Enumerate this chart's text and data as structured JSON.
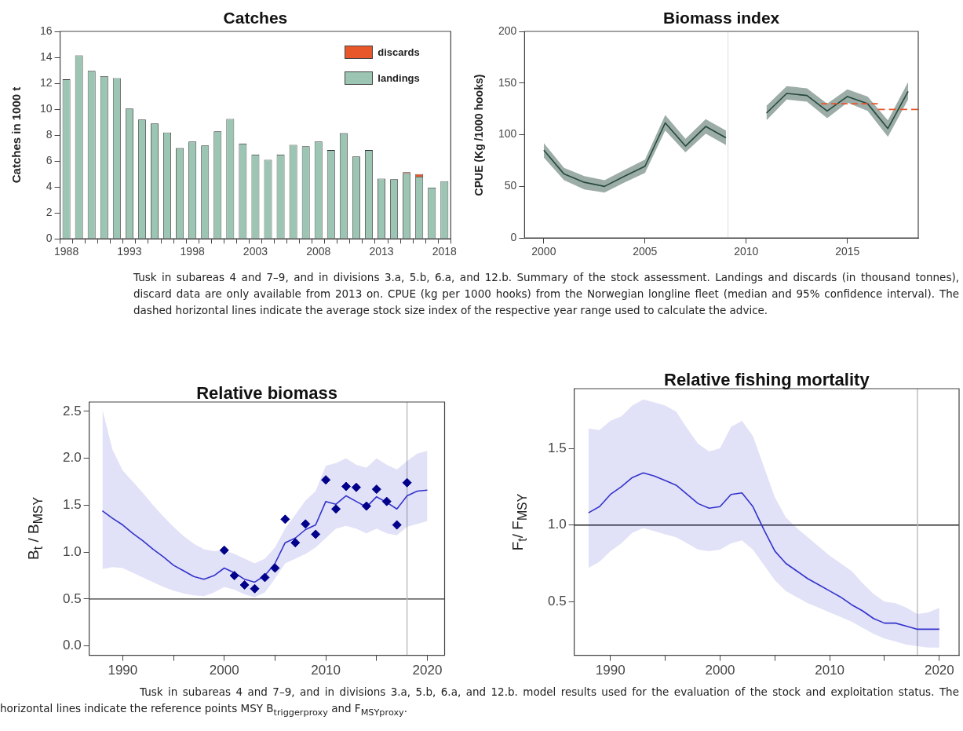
{
  "chart_data": [
    {
      "type": "bar",
      "title": "Catches",
      "ylabel": "Catches in 1000 t",
      "stacked": true,
      "legend": "top right",
      "grid": false,
      "categories": [
        "1988",
        null,
        null,
        null,
        null,
        "1993",
        null,
        null,
        null,
        null,
        "1998",
        null,
        null,
        null,
        null,
        "2003",
        null,
        null,
        null,
        null,
        "2008",
        null,
        null,
        null,
        null,
        "2013",
        null,
        null,
        null,
        null,
        "2018"
      ],
      "ylim": [
        0,
        16
      ],
      "yticks": [
        0,
        2,
        4,
        6,
        8,
        10,
        12,
        14,
        16
      ],
      "series": [
        {
          "name": "landings",
          "color": "#9cc5b3",
          "values": [
            12.3,
            14.15,
            12.95,
            12.55,
            12.4,
            10.05,
            9.2,
            8.9,
            8.2,
            7.0,
            7.5,
            7.2,
            8.3,
            9.25,
            7.35,
            6.5,
            6.1,
            6.5,
            7.25,
            7.15,
            7.5,
            6.85,
            8.15,
            6.35,
            6.85,
            4.65,
            4.6,
            5.05,
            4.8,
            3.95,
            4.45
          ]
        },
        {
          "name": "discards",
          "color": "#e8572a",
          "values": [
            null,
            null,
            null,
            null,
            null,
            null,
            null,
            null,
            null,
            null,
            null,
            null,
            null,
            null,
            null,
            null,
            null,
            null,
            null,
            null,
            null,
            null,
            null,
            null,
            null,
            null,
            0,
            0.1,
            0.2,
            null,
            null
          ]
        }
      ],
      "annotations": [
        "Tusk in subareas 4 and 7–9, and in divisions 3.a, 5.b, 6.a, and 12.b. Summary of the stock assessment. Landings and discards (in thousand tonnes), discard data are only available from 2013 on. CPUE (kg per 1000 hooks) from the Norwegian longline fleet (median and 95% confidence interval). The dashed horizontal lines indicate the average stock size index of the respective year range used to calculate the advice."
      ]
    },
    {
      "type": "line",
      "title": "Biomass index",
      "ylabel": "CPUE (Kg /1000 hooks)",
      "grid": false,
      "x": [
        2000,
        2001,
        2002,
        2003,
        2004,
        2005,
        2006,
        2007,
        2008,
        2009,
        2010,
        2011,
        2012,
        2013,
        2014,
        2015,
        2016,
        2017,
        2018
      ],
      "xlim": [
        1999.05,
        2018.5
      ],
      "xticks": [
        2000,
        2005,
        2010,
        2015
      ],
      "ylim": [
        0,
        200
      ],
      "yticks": [
        0,
        50,
        100,
        150,
        200
      ],
      "series": [
        {
          "color": "#24483c",
          "values": [
            85,
            62,
            54,
            50,
            60,
            69.5,
            111.5,
            89,
            108,
            97,
            null,
            121,
            140,
            138,
            123,
            137,
            130,
            106,
            142
          ],
          "lower": [
            78,
            56,
            47,
            44,
            54,
            63,
            104,
            83,
            101,
            90,
            null,
            114,
            134,
            132,
            116,
            131,
            123,
            98,
            134
          ],
          "upper": [
            92,
            68,
            60,
            56,
            66,
            76,
            119,
            96,
            115,
            104,
            null,
            128,
            147,
            145,
            130,
            144,
            137,
            114,
            151
          ]
        },
        {
          "type": "line",
          "color": "#e8572a",
          "line_style": "dashed",
          "x": [
            2013.7,
            2016.5
          ],
          "values": [
            130,
            130
          ]
        },
        {
          "type": "line",
          "color": "#e8572a",
          "line_style": "dashed",
          "x": [
            2016.5,
            2018.5
          ],
          "values": [
            124.5,
            124.5
          ]
        }
      ],
      "ref_lines": [
        {
          "axis": "x",
          "value": 2009.1,
          "color": "#e6e6e6"
        }
      ]
    },
    {
      "type": "line",
      "title": "Relative biomass",
      "ylabel": "B$_{t}$ / B$_{MSY}$",
      "grid": false,
      "x": [
        1988,
        1989,
        1990,
        1991,
        1992,
        1993,
        1994,
        1995,
        1996,
        1997,
        1998,
        1999,
        2000,
        2001,
        2002,
        2003,
        2004,
        2005,
        2006,
        2007,
        2008,
        2009,
        2010,
        2011,
        2012,
        2013,
        2014,
        2015,
        2016,
        2017,
        2018,
        2019,
        2020
      ],
      "xlim": [
        1986.7,
        2021.7
      ],
      "xticks": [
        1990,
        {
          "value": 1995,
          "label": null
        },
        2000,
        {
          "value": 2005,
          "label": null
        },
        2010,
        {
          "value": 2015,
          "label": null
        },
        2020
      ],
      "ylim": [
        -0.1,
        2.6
      ],
      "yticks": [
        {
          "value": 0,
          "label": "0.0"
        },
        0.5,
        {
          "value": 1,
          "label": "1.0"
        },
        1.5,
        {
          "value": 2,
          "label": "2.0"
        },
        2.5
      ],
      "series": [
        {
          "color": "#3333cc",
          "values": [
            1.44,
            1.36,
            1.29,
            1.2,
            1.12,
            1.03,
            0.95,
            0.86,
            0.8,
            0.74,
            0.71,
            0.75,
            0.83,
            0.78,
            0.71,
            0.68,
            0.75,
            0.88,
            1.1,
            1.15,
            1.24,
            1.29,
            1.54,
            1.51,
            1.6,
            1.54,
            1.48,
            1.59,
            1.53,
            1.46,
            1.6,
            1.65,
            1.66
          ],
          "upper": [
            2.52,
            2.09,
            1.87,
            1.75,
            1.63,
            1.5,
            1.38,
            1.27,
            1.17,
            1.09,
            1.03,
            1.01,
            1.02,
            0.98,
            0.93,
            0.88,
            0.93,
            1.05,
            1.25,
            1.4,
            1.55,
            1.65,
            1.92,
            1.95,
            2.0,
            1.93,
            1.9,
            2.0,
            1.93,
            1.88,
            1.97,
            2.05,
            2.08
          ],
          "lower": [
            0.82,
            0.84,
            0.83,
            0.78,
            0.73,
            0.68,
            0.63,
            0.59,
            0.56,
            0.54,
            0.53,
            0.57,
            0.63,
            0.6,
            0.55,
            0.52,
            0.57,
            0.72,
            0.88,
            0.93,
            0.98,
            1.05,
            1.15,
            1.25,
            1.28,
            1.25,
            1.2,
            1.25,
            1.2,
            1.18,
            1.27,
            1.3,
            1.33
          ]
        },
        {
          "type": "scatter",
          "color": "#00008b",
          "marker": "diamond",
          "x": [
            2000,
            2001,
            2002,
            2003,
            2004,
            2005,
            2006,
            2007,
            2008,
            2009,
            2010,
            2011,
            2012,
            2013,
            2014,
            2015,
            2016,
            2017,
            2018
          ],
          "values": [
            1.02,
            0.75,
            0.65,
            0.61,
            0.73,
            0.83,
            1.35,
            1.1,
            1.3,
            1.19,
            1.77,
            1.46,
            1.7,
            1.69,
            1.49,
            1.67,
            1.54,
            1.29,
            1.74
          ]
        }
      ],
      "ref_lines": [
        {
          "axis": "y",
          "value": 0.5,
          "color": "#333333"
        },
        {
          "axis": "x",
          "value": 2018,
          "color": "#bbbbbb"
        }
      ],
      "annotations": [
        "Tusk in subareas 4 and 7–9, and in divisions 3.a, 5.b, 6.a, and 12.b. model results used for the evaluation of the stock and exploitation status. The horizontal lines indicate the reference points MSY B$_{trigger}$$_{proxy}$ and F$_{MSY}$$_{proxy}$."
      ]
    },
    {
      "type": "line",
      "title": "Relative fishing mortality",
      "ylabel": "F$_{t}$/ F$_{MSY}$",
      "grid": false,
      "x": [
        1988,
        1989,
        1990,
        1991,
        1992,
        1993,
        1994,
        1995,
        1996,
        1997,
        1998,
        1999,
        2000,
        2001,
        2002,
        2003,
        2004,
        2005,
        2006,
        2007,
        2008,
        2009,
        2010,
        2011,
        2012,
        2013,
        2014,
        2015,
        2016,
        2017,
        2018,
        2019,
        2020
      ],
      "xlim": [
        1986.7,
        2021.8
      ],
      "xticks": [
        1990,
        {
          "value": 1995,
          "label": null
        },
        2000,
        {
          "value": 2005,
          "label": null
        },
        2010,
        {
          "value": 2015,
          "label": null
        },
        2020
      ],
      "ylim": [
        0.15,
        1.89
      ],
      "yticks": [
        0.5,
        {
          "value": 1,
          "label": "1.0"
        },
        1.5
      ],
      "series": [
        {
          "color": "#3333cc",
          "values": [
            1.08,
            1.12,
            1.2,
            1.25,
            1.31,
            1.34,
            1.32,
            1.29,
            1.26,
            1.2,
            1.14,
            1.11,
            1.12,
            1.2,
            1.21,
            1.12,
            0.97,
            0.83,
            0.75,
            0.7,
            0.65,
            0.61,
            0.57,
            0.53,
            0.48,
            0.44,
            0.39,
            0.36,
            0.36,
            0.34,
            0.32,
            0.32,
            0.32
          ],
          "upper": [
            1.63,
            1.62,
            1.68,
            1.71,
            1.78,
            1.82,
            1.8,
            1.78,
            1.74,
            1.63,
            1.53,
            1.48,
            1.5,
            1.64,
            1.68,
            1.58,
            1.38,
            1.18,
            1.05,
            0.98,
            0.92,
            0.86,
            0.8,
            0.75,
            0.7,
            0.62,
            0.55,
            0.5,
            0.49,
            0.46,
            0.42,
            0.43,
            0.46
          ],
          "lower": [
            0.72,
            0.76,
            0.83,
            0.88,
            0.95,
            0.98,
            0.96,
            0.94,
            0.92,
            0.88,
            0.84,
            0.83,
            0.84,
            0.88,
            0.9,
            0.84,
            0.74,
            0.64,
            0.57,
            0.53,
            0.49,
            0.46,
            0.43,
            0.4,
            0.37,
            0.33,
            0.29,
            0.26,
            0.24,
            0.22,
            0.21,
            0.2,
            0.2
          ]
        }
      ],
      "ref_lines": [
        {
          "axis": "y",
          "value": 1,
          "color": "#222222"
        },
        {
          "axis": "x",
          "value": 2018,
          "color": "#bbbbbb"
        }
      ]
    }
  ]
}
